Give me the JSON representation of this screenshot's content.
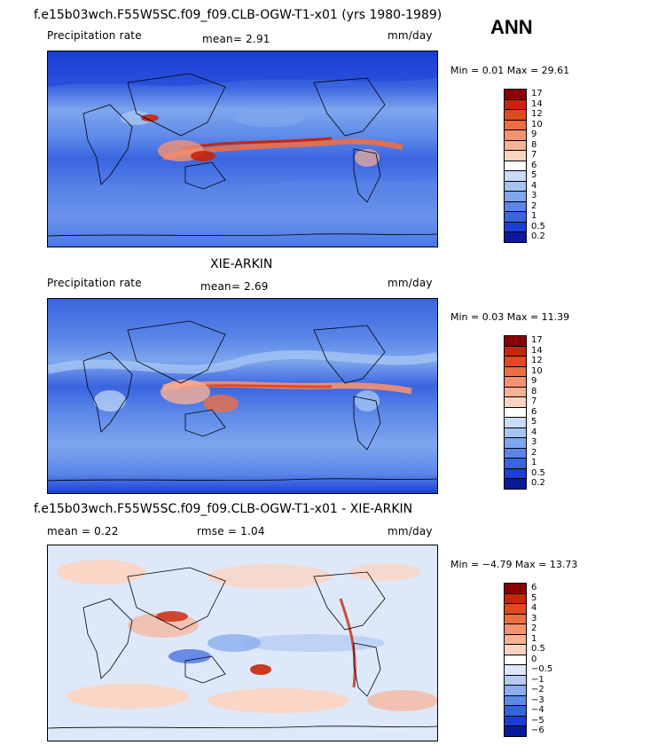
{
  "season": "ANN",
  "panels": [
    {
      "title": "f.e15b03wch.F55W5SC.f09_f09.CLB-OGW-T1-x01 (yrs 1980-1989)",
      "left_label": "Precipitation rate",
      "mean_text": "mean=   2.91",
      "units": "mm/day",
      "minmax": "Min =    0.01  Max =  29.61",
      "levels": [
        "17",
        "14",
        "12",
        "10",
        "9",
        "8",
        "7",
        "6",
        "5",
        "4",
        "3",
        "2",
        "1",
        "0.5",
        "0.2"
      ],
      "colors": [
        "#8b0000",
        "#c8250a",
        "#e04a20",
        "#ee6e44",
        "#f49272",
        "#f8b296",
        "#fcd4c0",
        "#ffffff",
        "#c8dcf8",
        "#a4c4f4",
        "#7ea6ee",
        "#5a86e8",
        "#3a64e0",
        "#1c3ed6",
        "#0a1a9c"
      ]
    },
    {
      "title": "XIE-ARKIN",
      "left_label": "Precipitation rate",
      "mean_text": "mean=   2.69",
      "units": "mm/day",
      "minmax": "Min =    0.03  Max =  11.39",
      "levels": [
        "17",
        "14",
        "12",
        "10",
        "9",
        "8",
        "7",
        "6",
        "5",
        "4",
        "3",
        "2",
        "1",
        "0.5",
        "0.2"
      ],
      "colors": [
        "#8b0000",
        "#c8250a",
        "#e04a20",
        "#ee6e44",
        "#f49272",
        "#f8b296",
        "#fcd4c0",
        "#ffffff",
        "#c8dcf8",
        "#a4c4f4",
        "#7ea6ee",
        "#5a86e8",
        "#3a64e0",
        "#1c3ed6",
        "#0a1a9c"
      ]
    },
    {
      "title": "f.e15b03wch.F55W5SC.f09_f09.CLB-OGW-T1-x01 - XIE-ARKIN",
      "left_label": "mean =   0.22",
      "mean_text": "rmse =   1.04",
      "units": "mm/day",
      "minmax": "Min =  −4.79  Max =  13.73",
      "levels": [
        "6",
        "5",
        "4",
        "3",
        "2",
        "1",
        "0.5",
        "0",
        "−0.5",
        "−1",
        "−2",
        "−3",
        "−4",
        "−5",
        "−6"
      ],
      "colors": [
        "#8b0000",
        "#c8250a",
        "#e04a20",
        "#ee6e44",
        "#f49272",
        "#f8b296",
        "#fcd4c0",
        "#ffffff",
        "#dde8fa",
        "#b6ccf4",
        "#8aaeee",
        "#5c8ae6",
        "#3664de",
        "#1a3ed4",
        "#0a1a9c"
      ]
    }
  ],
  "chart_data": {
    "type": "heatmap",
    "title": "ANN",
    "panels": [
      {
        "name": "f.e15b03wch.F55W5SC.f09_f09.CLB-OGW-T1-x01 (yrs 1980-1989)",
        "mean": 2.91,
        "min": 0.01,
        "max": 29.61,
        "units": "mm/day",
        "contour_levels": [
          0.2,
          0.5,
          1,
          2,
          3,
          4,
          5,
          6,
          7,
          8,
          9,
          10,
          12,
          14,
          17
        ]
      },
      {
        "name": "XIE-ARKIN",
        "mean": 2.69,
        "min": 0.03,
        "max": 11.39,
        "units": "mm/day",
        "contour_levels": [
          0.2,
          0.5,
          1,
          2,
          3,
          4,
          5,
          6,
          7,
          8,
          9,
          10,
          12,
          14,
          17
        ]
      },
      {
        "name": "f.e15b03wch.F55W5SC.f09_f09.CLB-OGW-T1-x01 - XIE-ARKIN",
        "mean": 0.22,
        "rmse": 1.04,
        "min": -4.79,
        "max": 13.73,
        "units": "mm/day",
        "contour_levels": [
          -6,
          -5,
          -4,
          -3,
          -2,
          -1,
          -0.5,
          0,
          0.5,
          1,
          2,
          3,
          4,
          5,
          6
        ]
      }
    ]
  }
}
